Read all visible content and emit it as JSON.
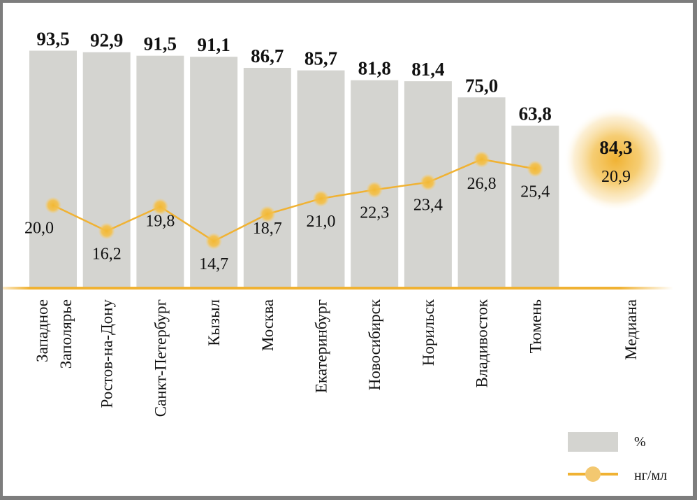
{
  "chart_data": {
    "type": "bar",
    "title": "",
    "xlabel": "",
    "ylabel": "",
    "categories": [
      "Западное\nЗаполярье",
      "Ростов-на-Дону",
      "Санкт-Петербург",
      "Кызыл",
      "Москва",
      "Екатеринбург",
      "Новосибирск",
      "Норильск",
      "Владивосток",
      "Тюмень"
    ],
    "series": [
      {
        "name": "%",
        "type": "bar",
        "values": [
          93.5,
          92.9,
          91.5,
          91.1,
          86.7,
          85.7,
          81.8,
          81.4,
          75.0,
          63.8
        ],
        "labels": [
          "93,5",
          "92,9",
          "91,5",
          "91,1",
          "86,7",
          "85,7",
          "81,8",
          "81,4",
          "75,0",
          "63,8"
        ]
      },
      {
        "name": "нг/мл",
        "type": "line",
        "values": [
          20.0,
          16.2,
          19.8,
          14.7,
          18.7,
          21.0,
          22.3,
          23.4,
          26.8,
          25.4
        ],
        "labels": [
          "20,0",
          "16,2",
          "19,8",
          "14,7",
          "18,7",
          "21,0",
          "22,3",
          "23,4",
          "26,8",
          "25,4"
        ]
      }
    ],
    "median": {
      "label": "Медиана",
      "percent": 84.3,
      "percent_label": "84,3",
      "ngml": 20.9,
      "ngml_label": "20,9"
    },
    "legend": {
      "position": "bottom-right",
      "items": [
        "%",
        "нг/мл"
      ]
    },
    "ylim_bar": [
      0,
      100
    ],
    "grid": false,
    "colors": {
      "bar": "#d4d4d0",
      "line": "#f0b233",
      "marker": "#f3c24e",
      "baseline": "#f0b233"
    }
  }
}
